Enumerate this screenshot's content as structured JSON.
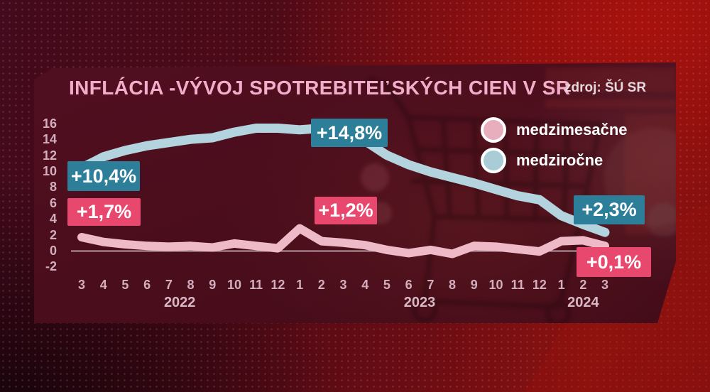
{
  "header": {
    "title": "INFLÁCIA -VÝVOJ SPOTREBITEĽSKÝCH CIEN V SR",
    "source": "zdroj: ŠÚ SR"
  },
  "legend": {
    "items": [
      {
        "label": "medzimesačne",
        "color": "#e9aebe"
      },
      {
        "label": "medziročne",
        "color": "#a9ccd7"
      }
    ]
  },
  "chart_data": {
    "type": "line",
    "title": "INFLÁCIA -VÝVOJ SPOTREBITEĽSKÝCH CIEN V SR",
    "xlabel": "",
    "ylabel": "",
    "ylim": [
      -2,
      16
    ],
    "grid": "zero-line-only",
    "legend_position": "top-right",
    "yticks": [
      "16",
      "14",
      "12",
      "10",
      "8",
      "6",
      "4",
      "2",
      "0",
      "-2"
    ],
    "x_months": [
      "3",
      "4",
      "5",
      "6",
      "7",
      "8",
      "9",
      "10",
      "11",
      "12",
      "1",
      "2",
      "3",
      "4",
      "5",
      "6",
      "7",
      "8",
      "9",
      "10",
      "11",
      "12",
      "1",
      "2",
      "3"
    ],
    "years": [
      {
        "label": "2022",
        "from": 0,
        "to": 9
      },
      {
        "label": "2023",
        "from": 10,
        "to": 21
      },
      {
        "label": "2024",
        "from": 22,
        "to": 24
      }
    ],
    "series": [
      {
        "key": "yoy",
        "name": "medziročne",
        "color": "#b3d4de",
        "width": 13,
        "values": [
          10.4,
          11.8,
          12.6,
          13.2,
          13.6,
          14.0,
          14.2,
          14.9,
          15.4,
          15.4,
          15.2,
          15.4,
          14.8,
          13.8,
          12.0,
          10.8,
          9.9,
          9.2,
          8.5,
          7.7,
          6.9,
          6.4,
          4.4,
          3.3,
          2.3
        ]
      },
      {
        "key": "mom",
        "name": "medzimesačne",
        "color": "#eebac7",
        "width": 12,
        "values": [
          1.7,
          1.1,
          0.8,
          0.6,
          0.5,
          0.6,
          0.4,
          0.9,
          0.6,
          0.3,
          2.8,
          1.2,
          1.0,
          0.7,
          0.1,
          -0.3,
          0.1,
          -0.4,
          0.6,
          0.5,
          0.2,
          -0.1,
          1.2,
          1.3,
          0.6
        ]
      }
    ],
    "annotations": [
      {
        "label": "+10,4%",
        "series": "medziročne"
      },
      {
        "label": "+1,7%",
        "series": "medzimesačne"
      },
      {
        "label": "+14,8%",
        "series": "medziročne"
      },
      {
        "label": "+1,2%",
        "series": "medzimesačne"
      },
      {
        "label": "+2,3%",
        "series": "medziročne"
      },
      {
        "label": "+0,1%",
        "series": "medzimesačne"
      }
    ]
  },
  "colors": {
    "accent_teal": "#2d7f99",
    "accent_pink": "#e8486e",
    "line_yoy": "#b3d4de",
    "line_mom": "#eebac7",
    "tick_text": "#d3aebd",
    "title_text": "#f2adca",
    "background_dark": "#4a0d1c",
    "background_bright": "#871110"
  }
}
